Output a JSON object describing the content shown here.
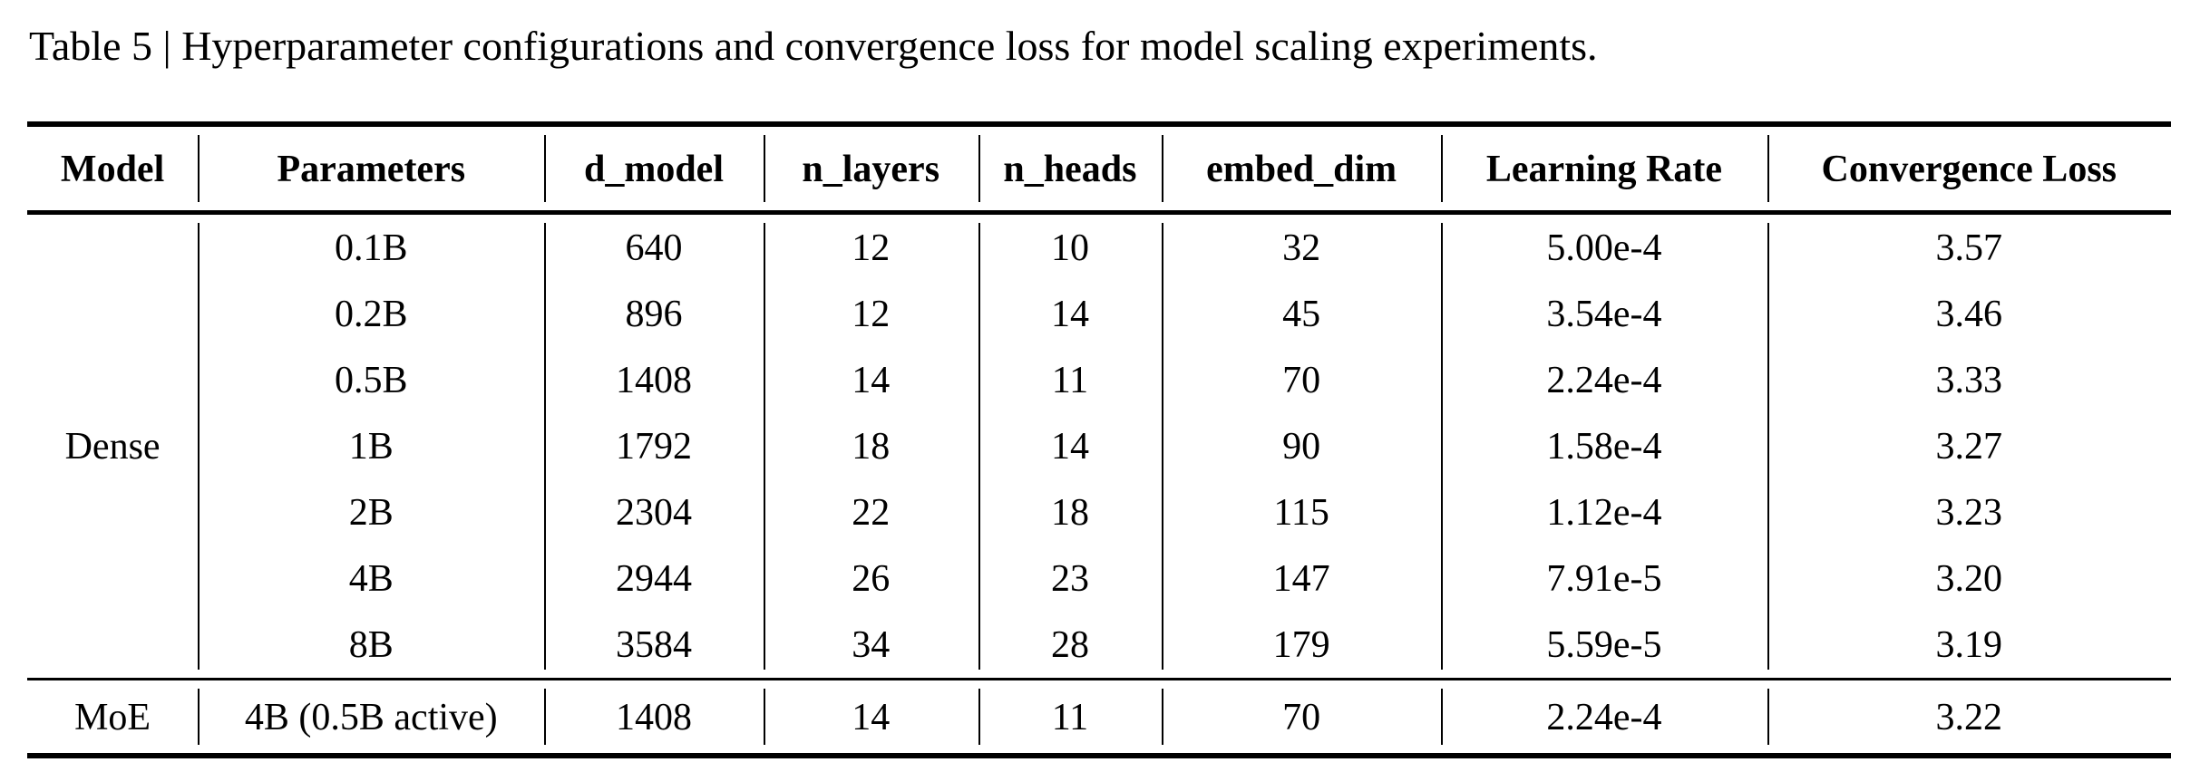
{
  "page": {
    "title": "Table 5 | Hyperparameter configurations and convergence loss for model scaling experiments."
  },
  "table": {
    "columns": [
      "Model",
      "Parameters",
      "d_model",
      "n_layers",
      "n_heads",
      "embed_dim",
      "Learning Rate",
      "Convergence Loss"
    ],
    "groups": [
      {
        "model": "Dense",
        "rows": [
          {
            "parameters": "0.1B",
            "d_model": "640",
            "n_layers": "12",
            "n_heads": "10",
            "embed_dim": "32",
            "learning_rate": "5.00e-4",
            "convergence_loss": "3.57"
          },
          {
            "parameters": "0.2B",
            "d_model": "896",
            "n_layers": "12",
            "n_heads": "14",
            "embed_dim": "45",
            "learning_rate": "3.54e-4",
            "convergence_loss": "3.46"
          },
          {
            "parameters": "0.5B",
            "d_model": "1408",
            "n_layers": "14",
            "n_heads": "11",
            "embed_dim": "70",
            "learning_rate": "2.24e-4",
            "convergence_loss": "3.33"
          },
          {
            "parameters": "1B",
            "d_model": "1792",
            "n_layers": "18",
            "n_heads": "14",
            "embed_dim": "90",
            "learning_rate": "1.58e-4",
            "convergence_loss": "3.27"
          },
          {
            "parameters": "2B",
            "d_model": "2304",
            "n_layers": "22",
            "n_heads": "18",
            "embed_dim": "115",
            "learning_rate": "1.12e-4",
            "convergence_loss": "3.23"
          },
          {
            "parameters": "4B",
            "d_model": "2944",
            "n_layers": "26",
            "n_heads": "23",
            "embed_dim": "147",
            "learning_rate": "7.91e-5",
            "convergence_loss": "3.20"
          },
          {
            "parameters": "8B",
            "d_model": "3584",
            "n_layers": "34",
            "n_heads": "28",
            "embed_dim": "179",
            "learning_rate": "5.59e-5",
            "convergence_loss": "3.19"
          }
        ]
      },
      {
        "model": "MoE",
        "rows": [
          {
            "parameters": "4B (0.5B active)",
            "d_model": "1408",
            "n_layers": "14",
            "n_heads": "11",
            "embed_dim": "70",
            "learning_rate": "2.24e-4",
            "convergence_loss": "3.22"
          }
        ]
      }
    ]
  },
  "colors": {
    "background": "#ffffff",
    "text": "#000000",
    "rule": "#000000"
  }
}
